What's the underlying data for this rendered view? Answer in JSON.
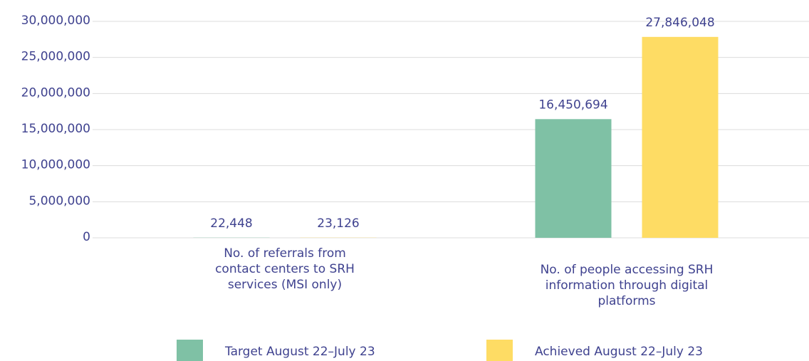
{
  "chart_data": {
    "type": "bar",
    "categories": [
      "No. of referrals from contact centers to SRH services (MSI only)",
      "No. of people accessing SRH information through digital platforms"
    ],
    "series": [
      {
        "name": "Target August 22–July 23",
        "color": "#7fc1a5",
        "values": [
          22448,
          16450694
        ],
        "value_labels": [
          "22,448",
          "16,450,694"
        ]
      },
      {
        "name": "Achieved August 22–July 23",
        "color": "#fedc64",
        "values": [
          23126,
          27846048
        ],
        "value_labels": [
          "23,126",
          "27,846,048"
        ]
      }
    ],
    "ylim": [
      0,
      30000000
    ],
    "yticks": [
      {
        "value": 0,
        "label": "0"
      },
      {
        "value": 5000000,
        "label": "5,000,000"
      },
      {
        "value": 10000000,
        "label": "10,000,000"
      },
      {
        "value": 15000000,
        "label": "15,000,000"
      },
      {
        "value": 20000000,
        "label": "20,000,000"
      },
      {
        "value": 25000000,
        "label": "25,000,000"
      },
      {
        "value": 30000000,
        "label": "30,000,000"
      }
    ],
    "grid": true,
    "legend": "bottom"
  }
}
